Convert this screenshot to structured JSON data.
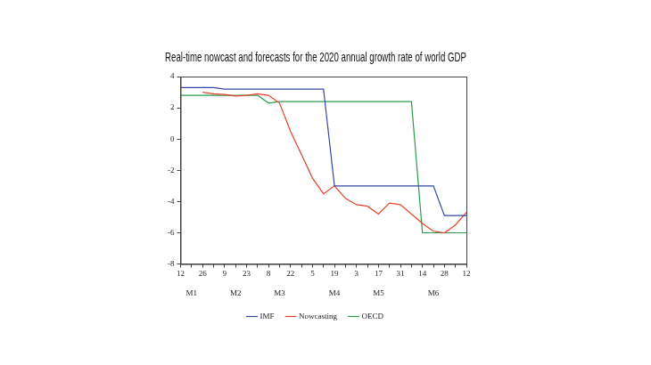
{
  "chart_data": {
    "type": "line",
    "title": "Real-time nowcast and forecasts for the 2020 annual growth rate of world GDP",
    "categories": [
      "12",
      null,
      "26",
      null,
      "9",
      null,
      "23",
      null,
      "8",
      null,
      "22",
      null,
      "5",
      null,
      "19",
      null,
      "3",
      null,
      "17",
      null,
      "31",
      null,
      "14",
      null,
      "28",
      null,
      "12"
    ],
    "months": [
      null,
      "M1",
      null,
      null,
      null,
      "M2",
      null,
      null,
      null,
      "M3",
      null,
      null,
      null,
      null,
      "M4",
      null,
      null,
      null,
      "M5",
      null,
      null,
      null,
      null,
      "M6",
      null,
      null,
      null
    ],
    "series": [
      {
        "name": "IMF",
        "color": "#3347a8",
        "values": [
          3.3,
          3.3,
          3.3,
          3.3,
          3.2,
          3.2,
          3.2,
          3.2,
          3.2,
          3.2,
          3.2,
          3.2,
          3.2,
          3.2,
          -3.0,
          -3.0,
          -3.0,
          -3.0,
          -3.0,
          -3.0,
          -3.0,
          -3.0,
          -3.0,
          -3.0,
          -4.9,
          -4.9,
          -4.9
        ]
      },
      {
        "name": "Nowcasting",
        "color": "#e8402a",
        "values": [
          null,
          null,
          3.0,
          2.9,
          2.85,
          2.75,
          2.8,
          2.9,
          2.8,
          2.3,
          0.5,
          -1.0,
          -2.5,
          -3.5,
          -3.0,
          -3.8,
          -4.2,
          -4.3,
          -4.8,
          -4.1,
          -4.2,
          -4.8,
          -5.4,
          -5.9,
          -6.0,
          -5.5,
          -4.7
        ]
      },
      {
        "name": "OECD",
        "color": "#2e9a48",
        "values": [
          2.8,
          2.8,
          2.8,
          2.8,
          2.8,
          2.8,
          2.8,
          2.8,
          2.3,
          2.4,
          2.4,
          2.4,
          2.4,
          2.4,
          2.4,
          2.4,
          2.4,
          2.4,
          2.4,
          2.4,
          2.4,
          2.4,
          -6.0,
          -6.0,
          -6.0,
          -6.0,
          -6.0
        ]
      }
    ],
    "ylim": [
      -8,
      4
    ],
    "yticks": [
      -8,
      -6,
      -4,
      -2,
      0,
      2,
      4
    ],
    "grid": false,
    "legend": "bottom"
  }
}
